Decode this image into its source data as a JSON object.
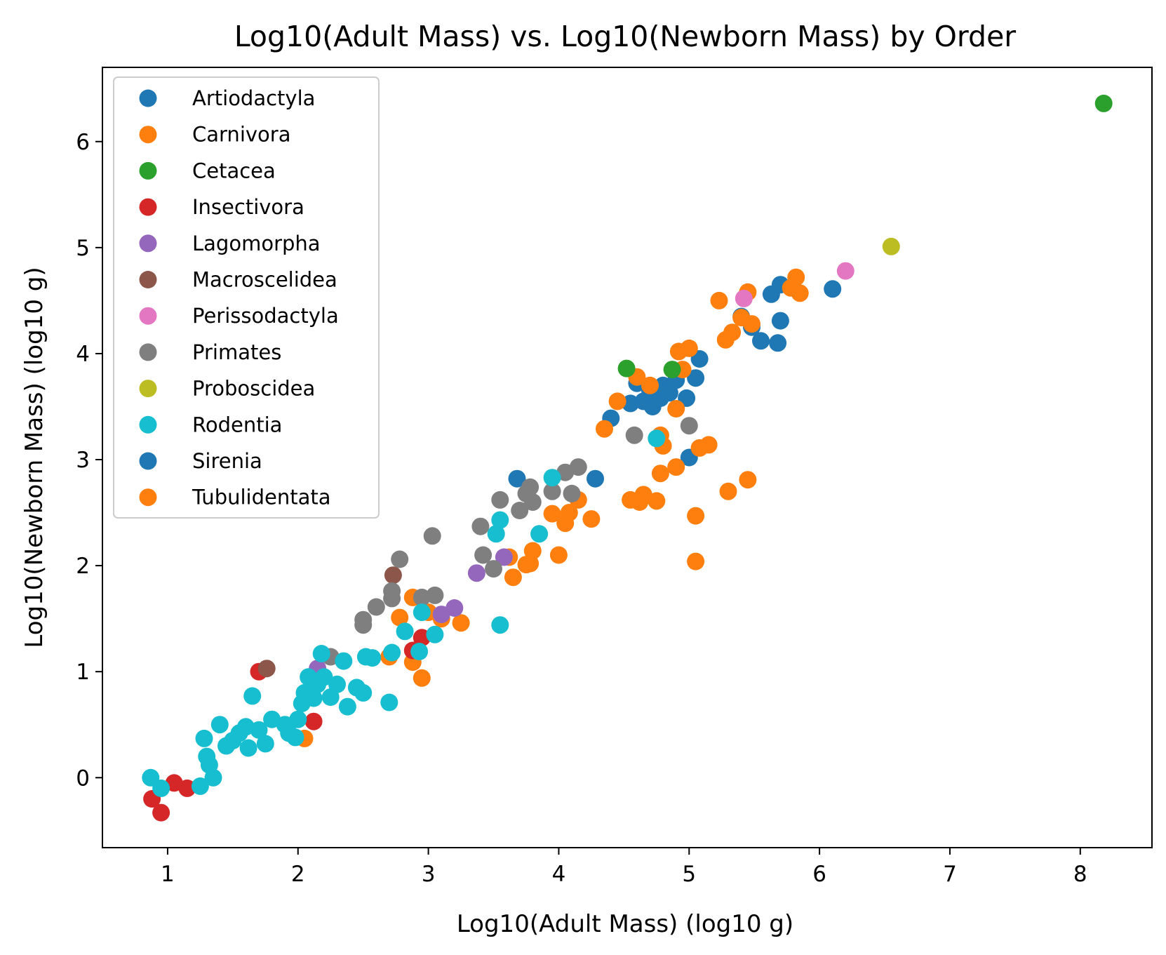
{
  "chart_data": {
    "type": "scatter",
    "title": "Log10(Adult Mass) vs. Log10(Newborn Mass) by Order",
    "xlabel": "Log10(Adult Mass) (log10 g)",
    "ylabel": "Log10(Newborn Mass) (log10 g)",
    "xlim": [
      0.5,
      8.55
    ],
    "ylim": [
      -0.66,
      6.7
    ],
    "xticks": [
      1,
      2,
      3,
      4,
      5,
      6,
      7,
      8
    ],
    "yticks": [
      0,
      1,
      2,
      3,
      4,
      5,
      6
    ],
    "grid": false,
    "legend_position": "upper-left",
    "series": [
      {
        "name": "Artiodactyla",
        "color": "#1f77b4",
        "points": [
          [
            4.4,
            3.39
          ],
          [
            4.55,
            3.53
          ],
          [
            4.6,
            3.72
          ],
          [
            4.65,
            3.55
          ],
          [
            4.7,
            3.65
          ],
          [
            4.72,
            3.5
          ],
          [
            4.75,
            3.62
          ],
          [
            4.78,
            3.58
          ],
          [
            4.8,
            3.7
          ],
          [
            4.85,
            3.63
          ],
          [
            4.9,
            3.75
          ],
          [
            4.98,
            3.58
          ],
          [
            5.05,
            3.77
          ],
          [
            5.08,
            3.95
          ],
          [
            5.0,
            3.02
          ],
          [
            5.4,
            4.35
          ],
          [
            5.48,
            4.25
          ],
          [
            5.55,
            4.12
          ],
          [
            5.63,
            4.56
          ],
          [
            5.68,
            4.1
          ],
          [
            5.7,
            4.31
          ],
          [
            5.7,
            4.65
          ],
          [
            3.68,
            2.82
          ],
          [
            4.28,
            2.82
          ],
          [
            6.1,
            4.61
          ]
        ]
      },
      {
        "name": "Carnivora",
        "color": "#ff7f0e",
        "points": [
          [
            2.05,
            0.37
          ],
          [
            2.7,
            1.14
          ],
          [
            2.78,
            1.51
          ],
          [
            2.88,
            1.09
          ],
          [
            2.88,
            1.7
          ],
          [
            2.95,
            0.94
          ],
          [
            3.0,
            1.56
          ],
          [
            3.1,
            1.5
          ],
          [
            3.25,
            1.46
          ],
          [
            3.62,
            2.08
          ],
          [
            3.65,
            1.89
          ],
          [
            3.75,
            2.01
          ],
          [
            3.8,
            2.14
          ],
          [
            3.78,
            2.02
          ],
          [
            3.95,
            2.49
          ],
          [
            4.0,
            2.1
          ],
          [
            4.05,
            2.4
          ],
          [
            4.08,
            2.5
          ],
          [
            4.15,
            2.62
          ],
          [
            4.25,
            2.44
          ],
          [
            4.35,
            3.29
          ],
          [
            4.45,
            3.55
          ],
          [
            4.55,
            2.62
          ],
          [
            4.62,
            2.6
          ],
          [
            4.65,
            2.67
          ],
          [
            4.7,
            3.7
          ],
          [
            4.75,
            2.61
          ],
          [
            4.78,
            3.23
          ],
          [
            4.8,
            3.13
          ],
          [
            4.78,
            2.87
          ],
          [
            4.9,
            2.93
          ],
          [
            4.9,
            3.48
          ],
          [
            4.95,
            3.85
          ],
          [
            4.92,
            4.02
          ],
          [
            5.0,
            4.05
          ],
          [
            5.05,
            2.47
          ],
          [
            5.05,
            2.04
          ],
          [
            5.08,
            3.11
          ],
          [
            5.15,
            3.14
          ],
          [
            5.23,
            4.5
          ],
          [
            5.28,
            4.13
          ],
          [
            5.3,
            2.7
          ],
          [
            5.33,
            4.2
          ],
          [
            5.4,
            4.34
          ],
          [
            5.45,
            4.58
          ],
          [
            5.45,
            2.81
          ],
          [
            5.48,
            4.28
          ],
          [
            5.78,
            4.62
          ],
          [
            5.82,
            4.72
          ],
          [
            5.85,
            4.57
          ],
          [
            4.6,
            3.78
          ]
        ]
      },
      {
        "name": "Cetacea",
        "color": "#2ca02c",
        "points": [
          [
            4.52,
            3.86
          ],
          [
            4.87,
            3.85
          ],
          [
            8.18,
            6.36
          ]
        ]
      },
      {
        "name": "Insectivora",
        "color": "#d62728",
        "points": [
          [
            0.88,
            -0.2
          ],
          [
            0.95,
            -0.33
          ],
          [
            1.05,
            -0.05
          ],
          [
            1.15,
            -0.1
          ],
          [
            1.7,
            1.0
          ],
          [
            2.12,
            0.53
          ],
          [
            2.88,
            1.2
          ],
          [
            2.95,
            1.32
          ]
        ]
      },
      {
        "name": "Lagomorpha",
        "color": "#9467bd",
        "points": [
          [
            2.15,
            1.03
          ],
          [
            3.1,
            1.54
          ],
          [
            3.2,
            1.6
          ],
          [
            3.37,
            1.93
          ],
          [
            3.58,
            2.08
          ]
        ]
      },
      {
        "name": "Macroscelidea",
        "color": "#8c564b",
        "points": [
          [
            1.76,
            1.03
          ],
          [
            2.73,
            1.91
          ]
        ]
      },
      {
        "name": "Perissodactyla",
        "color": "#e377c2",
        "points": [
          [
            5.42,
            4.52
          ],
          [
            6.2,
            4.78
          ]
        ]
      },
      {
        "name": "Primates",
        "color": "#7f7f7f",
        "points": [
          [
            2.25,
            1.14
          ],
          [
            2.5,
            1.44
          ],
          [
            2.5,
            1.49
          ],
          [
            2.6,
            1.61
          ],
          [
            2.72,
            1.69
          ],
          [
            2.72,
            1.76
          ],
          [
            2.78,
            2.06
          ],
          [
            2.95,
            1.7
          ],
          [
            3.03,
            2.28
          ],
          [
            3.05,
            1.72
          ],
          [
            3.4,
            2.37
          ],
          [
            3.42,
            2.1
          ],
          [
            3.5,
            1.97
          ],
          [
            3.55,
            2.62
          ],
          [
            3.7,
            2.52
          ],
          [
            3.75,
            2.68
          ],
          [
            3.78,
            2.74
          ],
          [
            3.8,
            2.6
          ],
          [
            3.95,
            2.7
          ],
          [
            4.05,
            2.88
          ],
          [
            4.1,
            2.68
          ],
          [
            4.15,
            2.93
          ],
          [
            4.58,
            3.23
          ],
          [
            5.0,
            3.32
          ]
        ]
      },
      {
        "name": "Proboscidea",
        "color": "#bcbd22",
        "points": [
          [
            6.55,
            5.01
          ]
        ]
      },
      {
        "name": "Rodentia",
        "color": "#17becf",
        "points": [
          [
            0.87,
            0.0
          ],
          [
            0.95,
            -0.1
          ],
          [
            1.25,
            -0.08
          ],
          [
            1.28,
            0.37
          ],
          [
            1.3,
            0.2
          ],
          [
            1.32,
            0.12
          ],
          [
            1.35,
            0.0
          ],
          [
            1.4,
            0.5
          ],
          [
            1.45,
            0.3
          ],
          [
            1.5,
            0.35
          ],
          [
            1.55,
            0.42
          ],
          [
            1.6,
            0.48
          ],
          [
            1.62,
            0.28
          ],
          [
            1.65,
            0.77
          ],
          [
            1.7,
            0.45
          ],
          [
            1.75,
            0.32
          ],
          [
            1.8,
            0.55
          ],
          [
            1.9,
            0.5
          ],
          [
            1.93,
            0.42
          ],
          [
            1.98,
            0.38
          ],
          [
            2.0,
            0.55
          ],
          [
            2.03,
            0.7
          ],
          [
            2.05,
            0.8
          ],
          [
            2.08,
            0.95
          ],
          [
            2.12,
            0.75
          ],
          [
            2.15,
            0.88
          ],
          [
            2.18,
            1.17
          ],
          [
            2.2,
            0.95
          ],
          [
            2.25,
            0.76
          ],
          [
            2.3,
            0.88
          ],
          [
            2.35,
            1.1
          ],
          [
            2.38,
            0.67
          ],
          [
            2.45,
            0.85
          ],
          [
            2.5,
            0.8
          ],
          [
            2.52,
            1.14
          ],
          [
            2.57,
            1.13
          ],
          [
            2.7,
            0.71
          ],
          [
            2.72,
            1.18
          ],
          [
            2.82,
            1.38
          ],
          [
            2.93,
            1.19
          ],
          [
            2.95,
            1.56
          ],
          [
            3.05,
            1.35
          ],
          [
            3.52,
            2.3
          ],
          [
            3.55,
            2.43
          ],
          [
            3.55,
            1.44
          ],
          [
            3.85,
            2.3
          ],
          [
            3.95,
            2.83
          ],
          [
            4.75,
            3.2
          ]
        ]
      },
      {
        "name": "Sirenia",
        "color": "#1f77b4",
        "points": []
      },
      {
        "name": "Tubulidentata",
        "color": "#ff7f0e",
        "points": []
      }
    ]
  }
}
